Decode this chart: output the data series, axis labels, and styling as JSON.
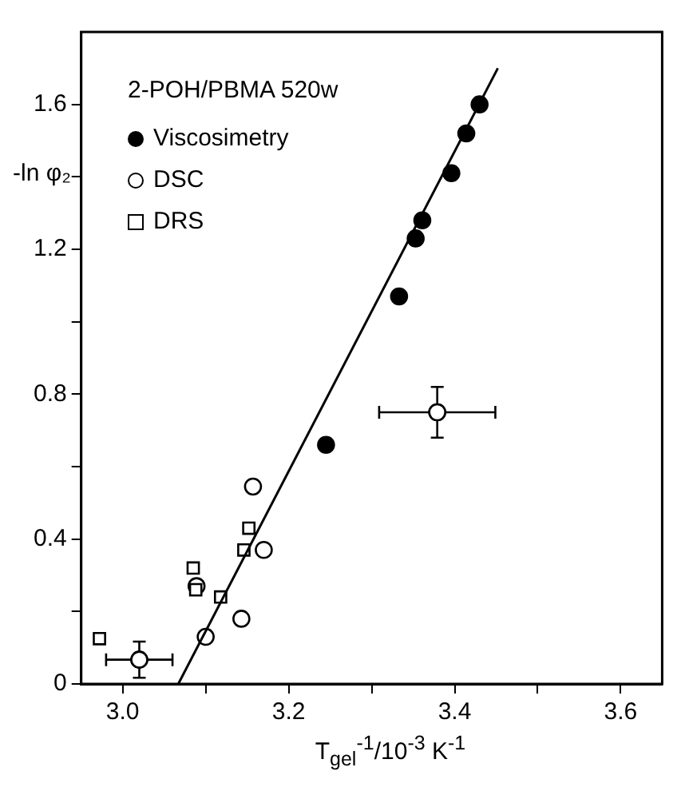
{
  "chart_data": {
    "type": "scatter",
    "legend_title": "2-POH/PBMA 520w",
    "xlabel": "T$_{gel}$$^{-1}$/10$^{-3}$ K$^{-1}$",
    "ylabel": "-ln φ₂",
    "xlim": [
      2.95,
      3.65
    ],
    "ylim": [
      0,
      1.8
    ],
    "xticks": [
      {
        "value": 3.0,
        "label": "3.0"
      },
      {
        "value": 3.1,
        "label": null
      },
      3.2,
      {
        "value": 3.3,
        "label": null
      },
      3.4,
      {
        "value": 3.5,
        "label": null
      },
      3.6
    ],
    "yticks": [
      0,
      {
        "value": 0.2,
        "label": null
      },
      0.4,
      {
        "value": 0.6,
        "label": null
      },
      0.8,
      {
        "value": 1.0,
        "label": null
      },
      1.2,
      {
        "value": 1.4,
        "label": null
      },
      1.6
    ],
    "grid": false,
    "legend": "top left",
    "series": [
      {
        "name": "Viscosimetry",
        "color": "#000000",
        "marker": "circle",
        "x": [
          3.43,
          3.414,
          3.396,
          3.361,
          3.353,
          3.333,
          3.245
        ],
        "values": [
          1.6,
          1.52,
          1.41,
          1.28,
          1.23,
          1.07,
          0.66
        ]
      },
      {
        "name": "DSC",
        "color": "#ffffff",
        "marker": "circle",
        "x": [
          3.379,
          3.02,
          3.157,
          3.17,
          3.089,
          3.1,
          3.143
        ],
        "values": [
          0.75,
          0.067,
          0.545,
          0.37,
          0.27,
          0.13,
          0.18
        ],
        "errors": [
          0.07,
          0.05,
          null,
          null,
          null,
          null,
          null
        ],
        "xerrors": [
          0.07,
          0.04,
          null,
          null,
          null,
          null,
          null
        ]
      },
      {
        "name": "DRS",
        "color": "#ffffff",
        "marker": "square",
        "x": [
          2.972,
          3.085,
          3.088,
          3.118,
          3.146,
          3.152
        ],
        "values": [
          0.125,
          0.32,
          0.26,
          0.24,
          0.37,
          0.43
        ]
      },
      {
        "type": "line",
        "color": "#000000",
        "marker": "none",
        "x": [
          3.067,
          3.452
        ],
        "values": [
          0,
          1.7
        ]
      }
    ]
  }
}
